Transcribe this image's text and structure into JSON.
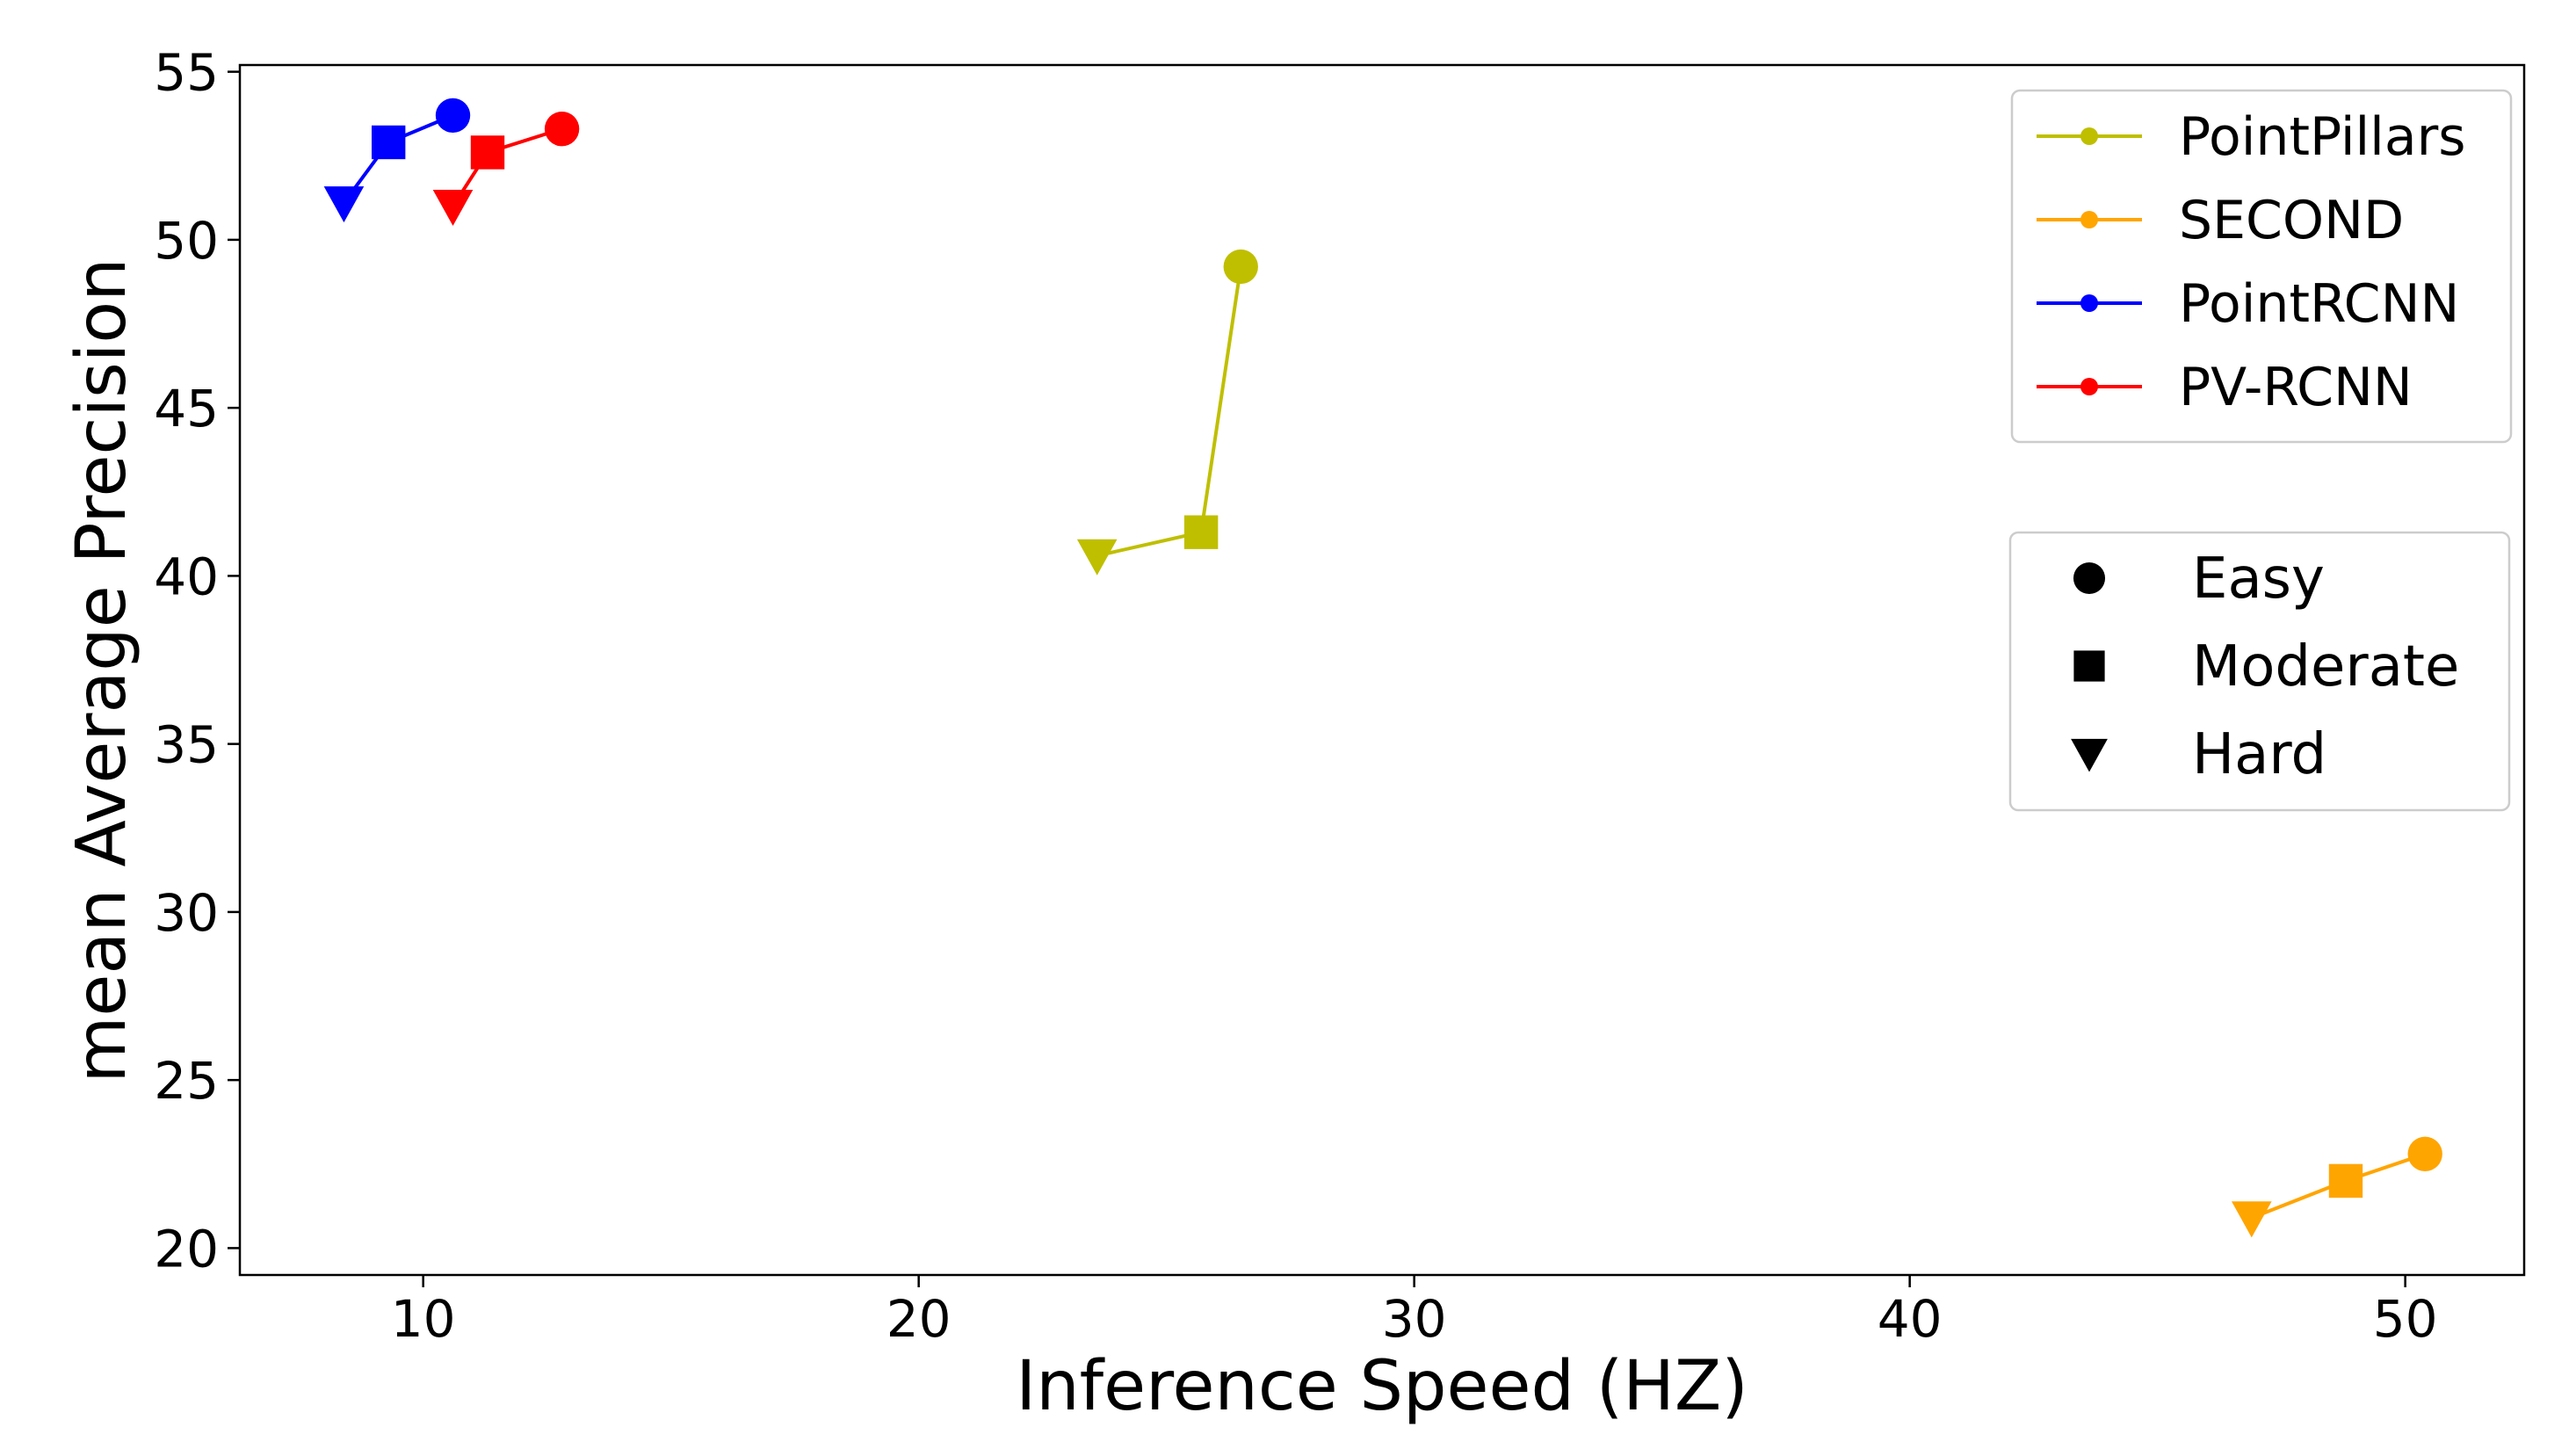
{
  "chart_data": {
    "type": "scatter",
    "xlabel": "Inference Speed (HZ)",
    "ylabel": "mean Average Precision",
    "xlim": [
      6.3,
      52.4
    ],
    "ylim": [
      19.2,
      55.2
    ],
    "xticks": [
      10,
      20,
      30,
      40,
      50
    ],
    "yticks": [
      20,
      25,
      30,
      35,
      40,
      45,
      50,
      55
    ],
    "grid": false,
    "difficulties": [
      "Easy",
      "Moderate",
      "Hard"
    ],
    "series": [
      {
        "name": "PointPillars",
        "color": "#bfbf00",
        "points": [
          {
            "difficulty": "Easy",
            "x": 26.5,
            "y": 49.2
          },
          {
            "difficulty": "Moderate",
            "x": 25.7,
            "y": 41.3
          },
          {
            "difficulty": "Hard",
            "x": 23.6,
            "y": 40.6
          }
        ]
      },
      {
        "name": "SECOND",
        "color": "#ffa500",
        "points": [
          {
            "difficulty": "Easy",
            "x": 50.4,
            "y": 22.8
          },
          {
            "difficulty": "Moderate",
            "x": 48.8,
            "y": 22.0
          },
          {
            "difficulty": "Hard",
            "x": 46.9,
            "y": 20.9
          }
        ]
      },
      {
        "name": "PointRCNN",
        "color": "#0000ff",
        "points": [
          {
            "difficulty": "Easy",
            "x": 10.6,
            "y": 53.7
          },
          {
            "difficulty": "Moderate",
            "x": 9.3,
            "y": 52.9
          },
          {
            "difficulty": "Hard",
            "x": 8.4,
            "y": 51.1
          }
        ]
      },
      {
        "name": "PV-RCNN",
        "color": "#ff0000",
        "points": [
          {
            "difficulty": "Easy",
            "x": 12.8,
            "y": 53.3
          },
          {
            "difficulty": "Moderate",
            "x": 11.3,
            "y": 52.6
          },
          {
            "difficulty": "Hard",
            "x": 10.6,
            "y": 51.0
          }
        ]
      }
    ],
    "legends": [
      {
        "kind": "series",
        "placement": "top-right"
      },
      {
        "kind": "difficulty",
        "placement": "right"
      }
    ]
  }
}
